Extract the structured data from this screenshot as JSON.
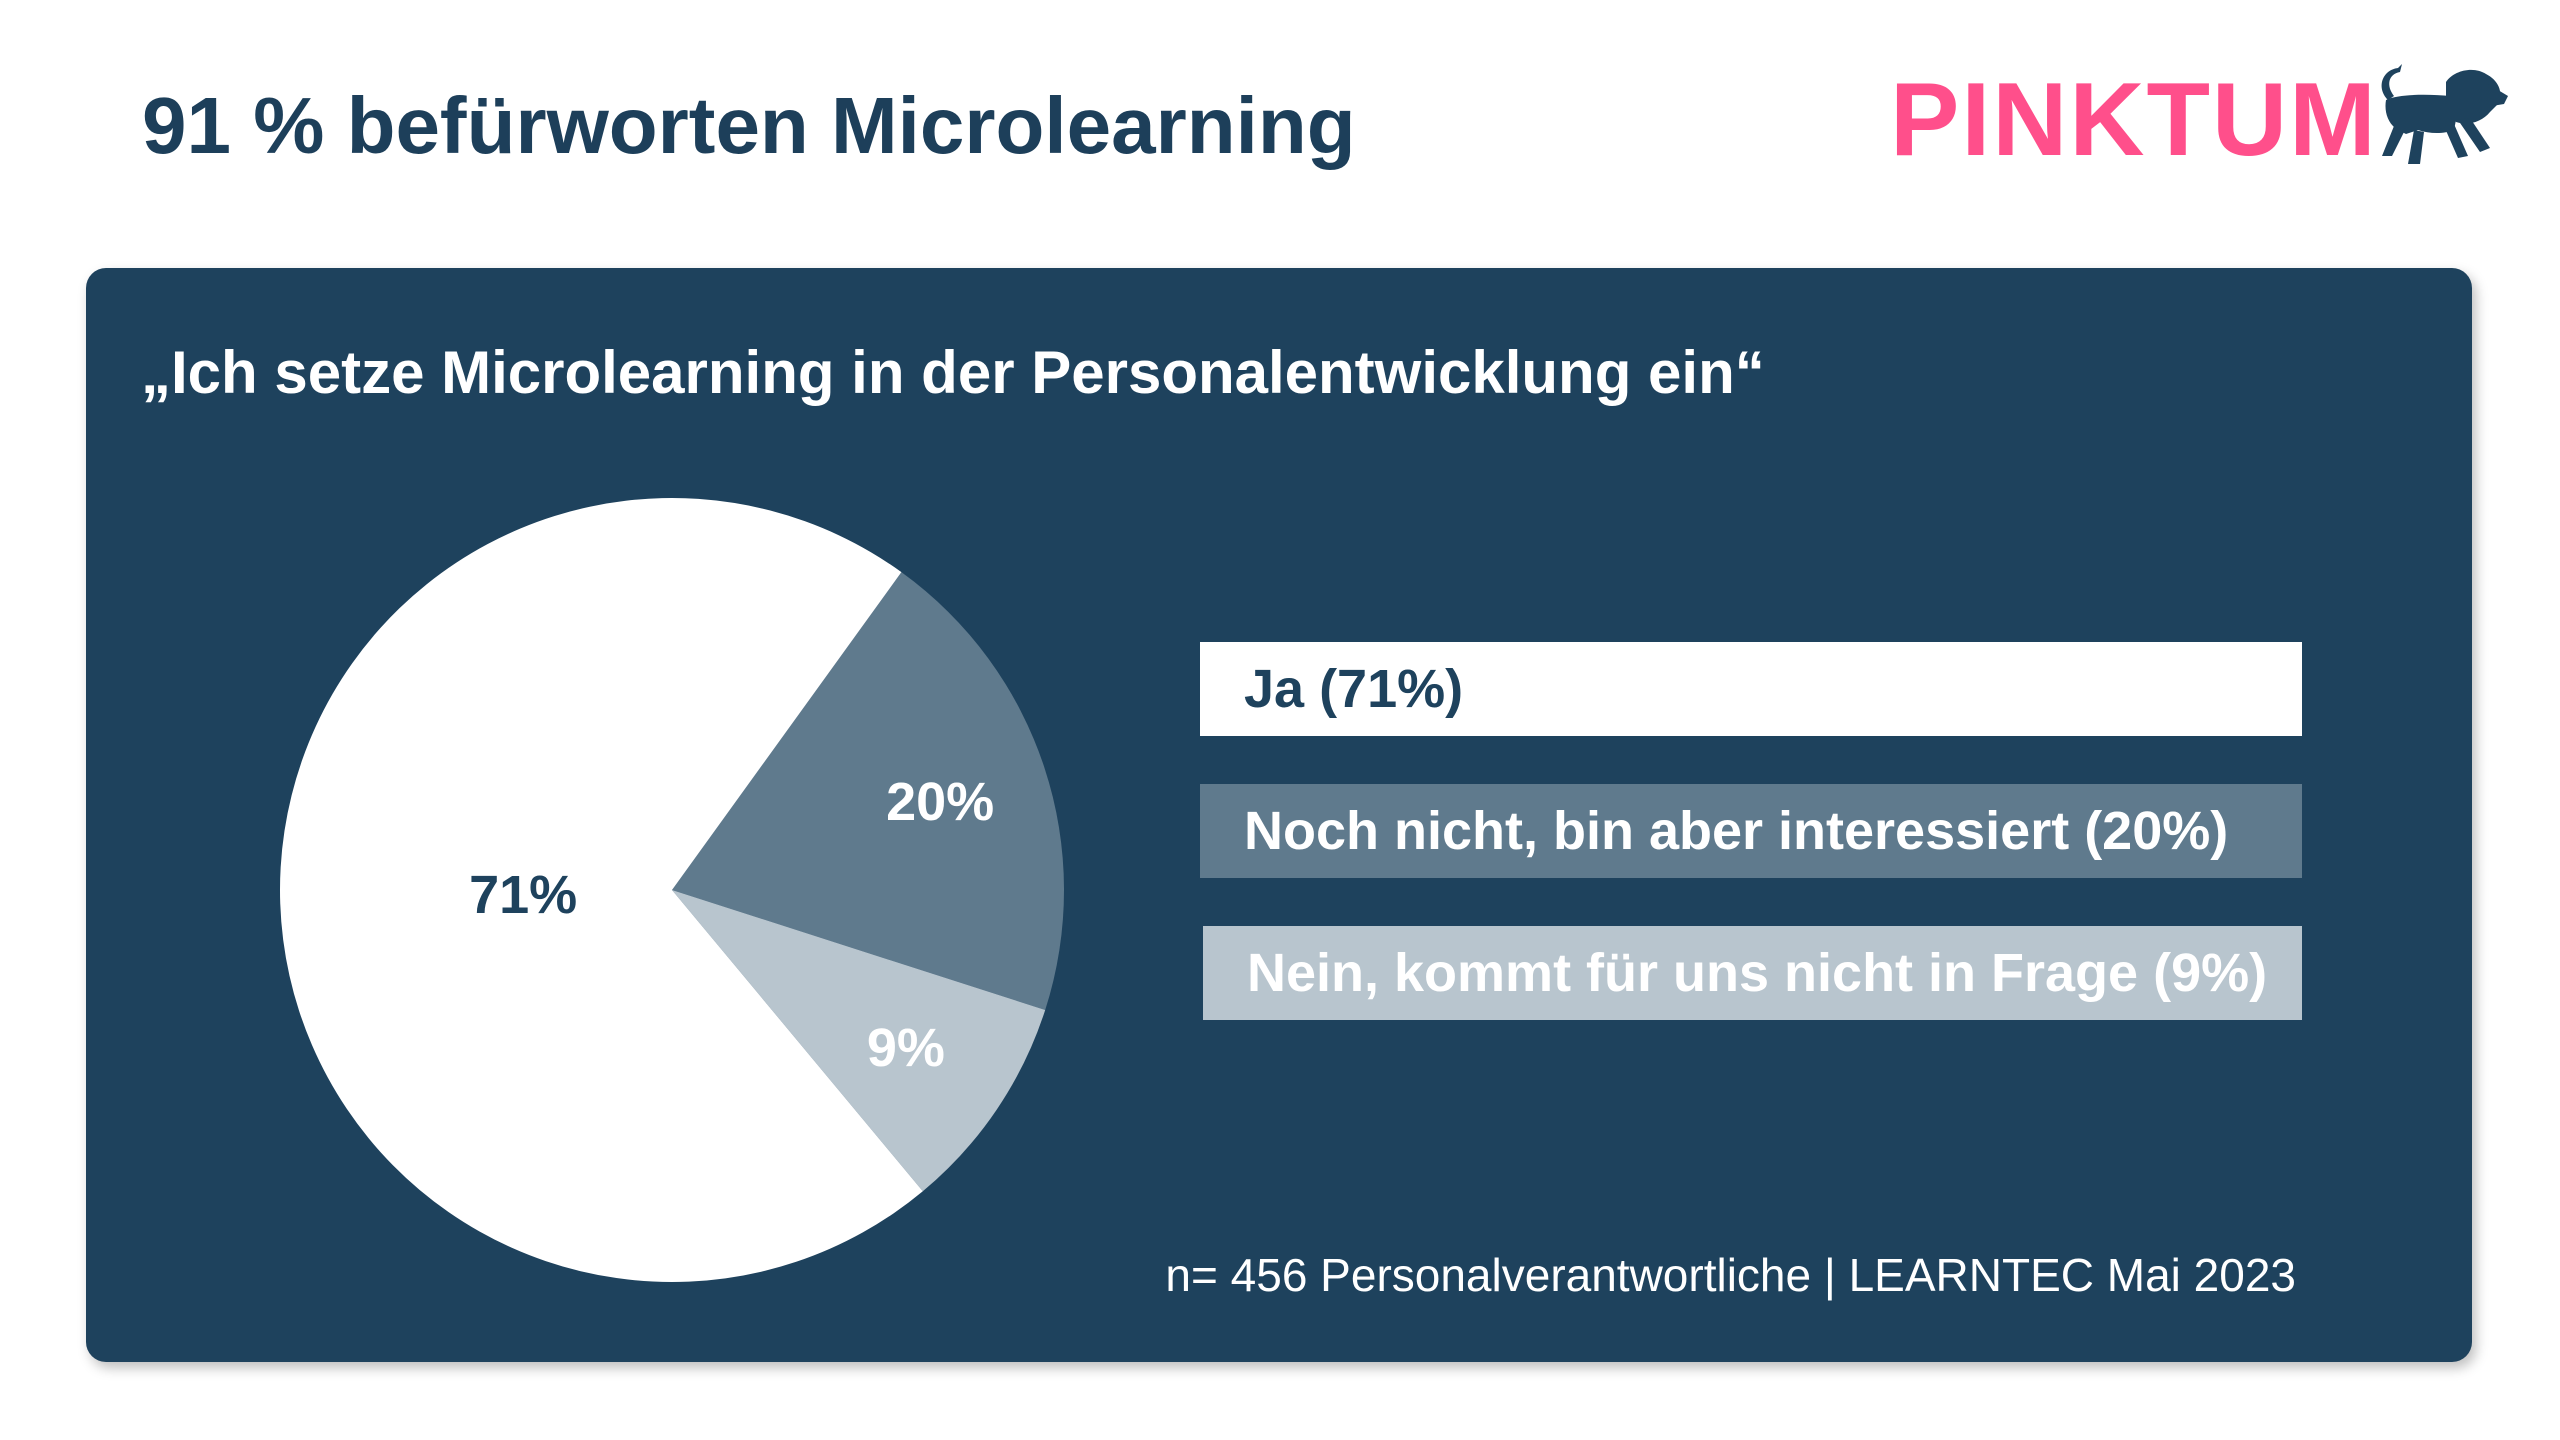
{
  "header": {
    "title": "91 % befürworten Microlearning",
    "logo_text": "PINKTUM",
    "logo_icon": "lion-icon"
  },
  "colors": {
    "panel_bg": "#1e425d",
    "title": "#1d3f5a",
    "brand_pink": "#ff4f8b",
    "slice_ja": "#ffffff",
    "slice_noch_nicht": "#5f7a8d",
    "slice_nein": "#b8c5ce"
  },
  "chart_data": {
    "type": "pie",
    "title": "„Ich setze Microlearning in der Personalentwicklung ein“",
    "slices": [
      {
        "label": "Ja (71%)",
        "value": 71,
        "display": "71%",
        "color": "#ffffff",
        "text_color": "#1e425d"
      },
      {
        "label": "Noch nicht, bin aber interessiert (20%)",
        "value": 20,
        "display": "20%",
        "color": "#5f7a8d",
        "text_color": "#ffffff"
      },
      {
        "label": "Nein, kommt für uns nicht in Frage (9%)",
        "value": 9,
        "display": "9%",
        "color": "#b8c5ce",
        "text_color": "#ffffff"
      }
    ],
    "legend_position": "right"
  },
  "footer": {
    "source": "n= 456 Personalverantwortliche | LEARNTEC Mai 2023"
  }
}
